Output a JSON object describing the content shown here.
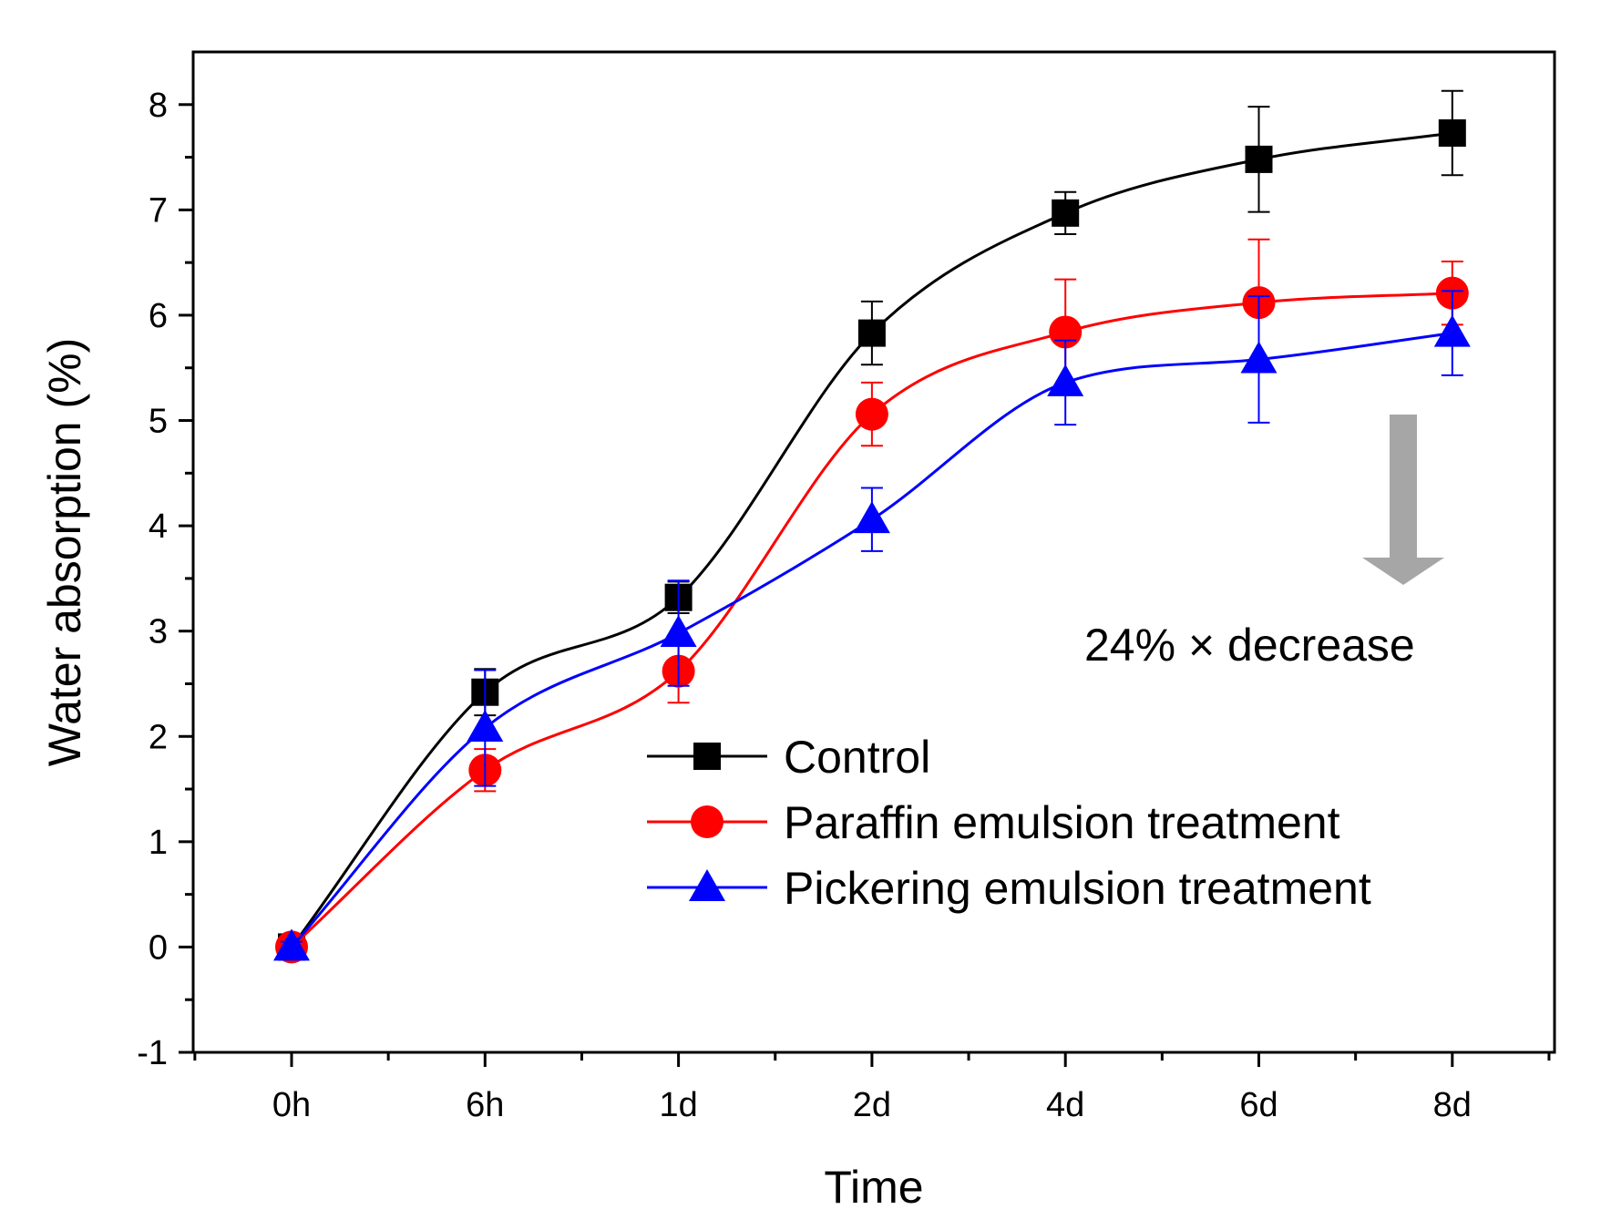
{
  "chart_data": {
    "type": "line",
    "xlabel": "Time",
    "ylabel": "Water absorption (%)",
    "categories": [
      "0h",
      "6h",
      "1d",
      "2d",
      "4d",
      "6d",
      "8d"
    ],
    "ylim": [
      -1,
      8.5
    ],
    "yticks": [
      -1,
      0,
      1,
      2,
      3,
      4,
      5,
      6,
      7,
      8
    ],
    "grid": false,
    "legend_position": "bottom-right",
    "series": [
      {
        "name": "Control",
        "color": "#000000",
        "marker": "square",
        "values": [
          0,
          2.42,
          3.32,
          5.83,
          6.97,
          7.48,
          7.73
        ],
        "errors": [
          0.05,
          0.22,
          0.15,
          0.3,
          0.2,
          0.5,
          0.4
        ]
      },
      {
        "name": "Paraffin emulsion treatment",
        "color": "#ff0000",
        "marker": "circle",
        "values": [
          0,
          1.68,
          2.62,
          5.06,
          5.84,
          6.12,
          6.21
        ],
        "errors": [
          0.05,
          0.2,
          0.3,
          0.3,
          0.5,
          0.6,
          0.3
        ]
      },
      {
        "name": "Pickering emulsion treatment",
        "color": "#0000ff",
        "marker": "triangle",
        "values": [
          0,
          2.08,
          2.98,
          4.06,
          5.36,
          5.58,
          5.83
        ],
        "errors": [
          0.05,
          0.55,
          0.5,
          0.3,
          0.4,
          0.6,
          0.4
        ]
      }
    ],
    "annotations": [
      {
        "text": "24% × decrease",
        "arrow_color": "#a6a6a6"
      }
    ]
  }
}
